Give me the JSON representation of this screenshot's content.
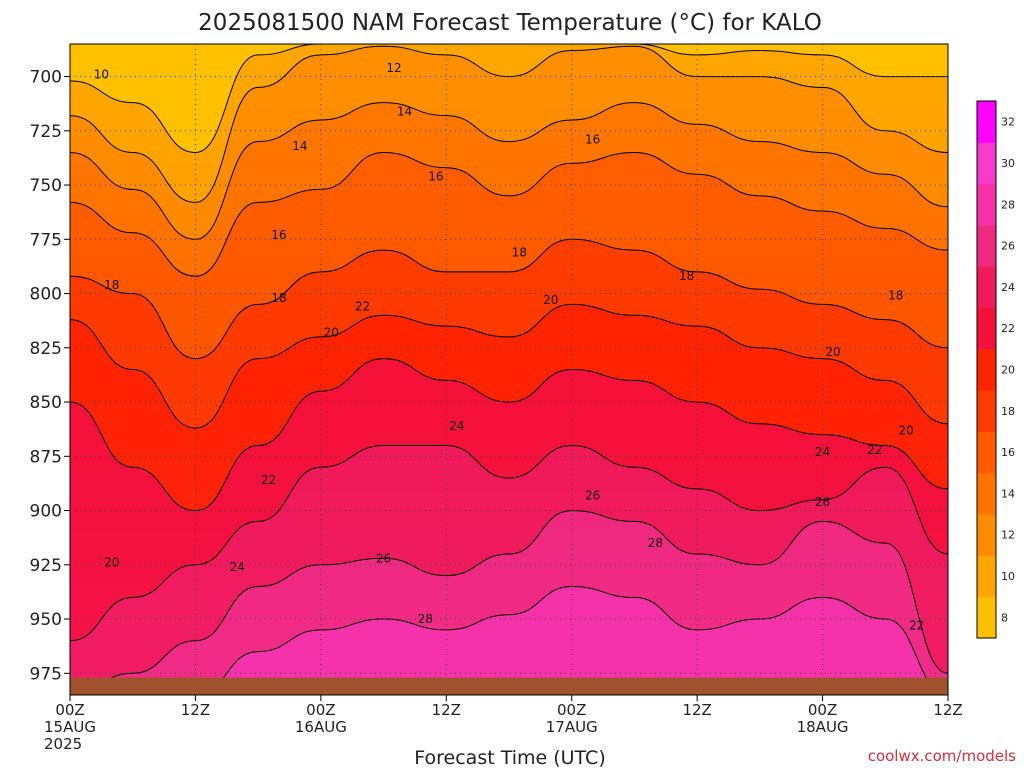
{
  "chart_data": {
    "type": "heatmap",
    "title": "2025081500 NAM Forecast Temperature (°C) for KALO",
    "xlabel": "Forecast Time (UTC)",
    "ylabel": "",
    "x_ticks": [
      {
        "hour": 0,
        "lines": [
          "00Z",
          "15AUG",
          "2025"
        ]
      },
      {
        "hour": 12,
        "lines": [
          "12Z"
        ]
      },
      {
        "hour": 24,
        "lines": [
          "00Z",
          "16AUG"
        ]
      },
      {
        "hour": 36,
        "lines": [
          "12Z"
        ]
      },
      {
        "hour": 48,
        "lines": [
          "00Z",
          "17AUG"
        ]
      },
      {
        "hour": 60,
        "lines": [
          "12Z"
        ]
      },
      {
        "hour": 72,
        "lines": [
          "00Z",
          "18AUG"
        ]
      },
      {
        "hour": 84,
        "lines": [
          "12Z"
        ]
      }
    ],
    "xlim_hours": [
      0,
      84
    ],
    "y_ticks": [
      700,
      725,
      750,
      775,
      800,
      825,
      850,
      875,
      900,
      925,
      950,
      975
    ],
    "ylim_hpa": [
      685,
      985
    ],
    "grid": true,
    "colorbar": {
      "labels": [
        8,
        10,
        12,
        14,
        16,
        18,
        20,
        22,
        24,
        26,
        28,
        30,
        32
      ],
      "colors": [
        "#ffc000",
        "#ffa500",
        "#ff8c00",
        "#ff7300",
        "#ff5a00",
        "#ff3c00",
        "#ff2400",
        "#f5103a",
        "#f01a5a",
        "#f02a80",
        "#f532a8",
        "#f83acc",
        "#ff00ff"
      ],
      "placement": "right"
    },
    "isotherm_levels": [
      10,
      12,
      14,
      16,
      18,
      20,
      22,
      24,
      26,
      28
    ],
    "isotherm_pressure_hpa": {
      "hours": [
        0,
        6,
        12,
        18,
        24,
        30,
        36,
        42,
        48,
        54,
        60,
        66,
        72,
        78,
        84
      ],
      "t10": [
        702,
        712,
        735,
        690,
        680,
        680,
        680,
        680,
        680,
        680,
        690,
        688,
        690,
        700,
        700
      ],
      "t12": [
        718,
        735,
        758,
        705,
        690,
        686,
        690,
        700,
        688,
        686,
        700,
        700,
        705,
        725,
        735
      ],
      "t14": [
        735,
        752,
        775,
        730,
        720,
        712,
        718,
        730,
        720,
        712,
        722,
        730,
        735,
        745,
        760
      ],
      "t16": [
        758,
        772,
        792,
        758,
        752,
        735,
        742,
        755,
        740,
        735,
        745,
        755,
        762,
        770,
        780
      ],
      "t18": [
        792,
        800,
        830,
        805,
        790,
        780,
        790,
        790,
        775,
        780,
        790,
        798,
        805,
        812,
        825
      ],
      "t20": [
        812,
        835,
        862,
        830,
        820,
        810,
        815,
        820,
        805,
        810,
        815,
        825,
        830,
        840,
        860
      ],
      "t22": [
        850,
        880,
        900,
        870,
        845,
        830,
        840,
        850,
        835,
        840,
        850,
        860,
        865,
        870,
        890
      ],
      "t24": [
        960,
        940,
        925,
        905,
        880,
        870,
        870,
        885,
        870,
        880,
        890,
        900,
        895,
        880,
        920
      ],
      "t26": [
        985,
        975,
        960,
        935,
        925,
        922,
        930,
        920,
        900,
        905,
        920,
        925,
        905,
        915,
        975
      ],
      "t28": [
        985,
        985,
        985,
        965,
        955,
        950,
        955,
        948,
        935,
        940,
        955,
        950,
        940,
        950,
        985
      ]
    },
    "contour_labels": [
      {
        "text": "10",
        "hour": 3,
        "p": 699
      },
      {
        "text": "12",
        "hour": 31,
        "p": 696
      },
      {
        "text": "14",
        "hour": 22,
        "p": 732
      },
      {
        "text": "14",
        "hour": 32,
        "p": 716
      },
      {
        "text": "16",
        "hour": 20,
        "p": 773
      },
      {
        "text": "16",
        "hour": 35,
        "p": 746
      },
      {
        "text": "16",
        "hour": 50,
        "p": 729
      },
      {
        "text": "18",
        "hour": 4,
        "p": 796
      },
      {
        "text": "18",
        "hour": 20,
        "p": 802
      },
      {
        "text": "18",
        "hour": 43,
        "p": 781
      },
      {
        "text": "18",
        "hour": 59,
        "p": 792
      },
      {
        "text": "18",
        "hour": 79,
        "p": 801
      },
      {
        "text": "20",
        "hour": 25,
        "p": 818
      },
      {
        "text": "20",
        "hour": 46,
        "p": 803
      },
      {
        "text": "20",
        "hour": 73,
        "p": 827
      },
      {
        "text": "20",
        "hour": 80,
        "p": 863
      },
      {
        "text": "22",
        "hour": 28,
        "p": 806
      },
      {
        "text": "22",
        "hour": 19,
        "p": 886
      },
      {
        "text": "22",
        "hour": 77,
        "p": 872
      },
      {
        "text": "22",
        "hour": 81,
        "p": 953
      },
      {
        "text": "24",
        "hour": 37,
        "p": 861
      },
      {
        "text": "24",
        "hour": 16,
        "p": 926
      },
      {
        "text": "24",
        "hour": 72,
        "p": 873
      },
      {
        "text": "26",
        "hour": 30,
        "p": 922
      },
      {
        "text": "26",
        "hour": 50,
        "p": 893
      },
      {
        "text": "26",
        "hour": 72,
        "p": 896
      },
      {
        "text": "28",
        "hour": 34,
        "p": 950
      },
      {
        "text": "28",
        "hour": 56,
        "p": 915
      },
      {
        "text": "20",
        "hour": 4,
        "p": 924
      }
    ],
    "surface": {
      "color": "#a0522d",
      "pressure_hpa": 977
    }
  },
  "credit": "coolwx.com/models"
}
